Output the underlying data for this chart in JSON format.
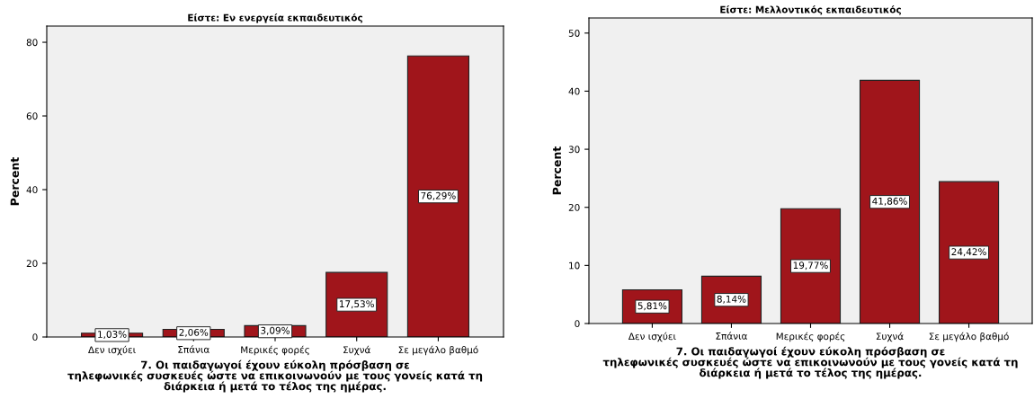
{
  "chart_data": [
    {
      "type": "bar",
      "title": "Είστε: Εν ενεργεία εκπαιδευτικός",
      "xlabel": "7. Οι παιδαγωγοί έχουν εύκολη πρόσβαση σε\nτηλεφωνικές συσκευές ώστε να επικοινωνούν με τους γονείς κατά τη\nδιάρκεια ή μετά το τέλος της ημέρας.",
      "ylabel": "Percent",
      "categories": [
        "Δεν ισχύει",
        "Σπάνια",
        "Μερικές φορές",
        "Συχνά",
        "Σε μεγάλο βαθμό"
      ],
      "values": [
        1.03,
        2.06,
        3.09,
        17.53,
        76.29
      ],
      "value_labels": [
        "1,03%",
        "2,06%",
        "3,09%",
        "17,53%",
        "76,29%"
      ],
      "color": "#a0151b",
      "ylim": [
        0,
        84.4
      ],
      "yticks": [
        0,
        20,
        40,
        60,
        80
      ],
      "grid": false,
      "legend": false
    },
    {
      "type": "bar",
      "title": "Είστε: Μελλοντικός εκπαιδευτικός",
      "xlabel": "7. Οι παιδαγωγοί έχουν εύκολη πρόσβαση σε\nτηλεφωνικές συσκευές ώστε να επικοινωνούν με τους γονείς κατά τη\nδιάρκεια ή μετά το τέλος της ημέρας.",
      "ylabel": "Percent",
      "categories": [
        "Δεν ισχύει",
        "Σπάνια",
        "Μερικές φορές",
        "Συχνά",
        "Σε μεγάλο βαθμό"
      ],
      "values": [
        5.81,
        8.14,
        19.77,
        41.86,
        24.42
      ],
      "value_labels": [
        "5,81%",
        "8,14%",
        "19,77%",
        "41,86%",
        "24,42%"
      ],
      "color": "#a0151b",
      "ylim": [
        0,
        52.6
      ],
      "yticks": [
        0,
        10,
        20,
        30,
        40,
        50
      ],
      "grid": false,
      "legend": false
    }
  ]
}
